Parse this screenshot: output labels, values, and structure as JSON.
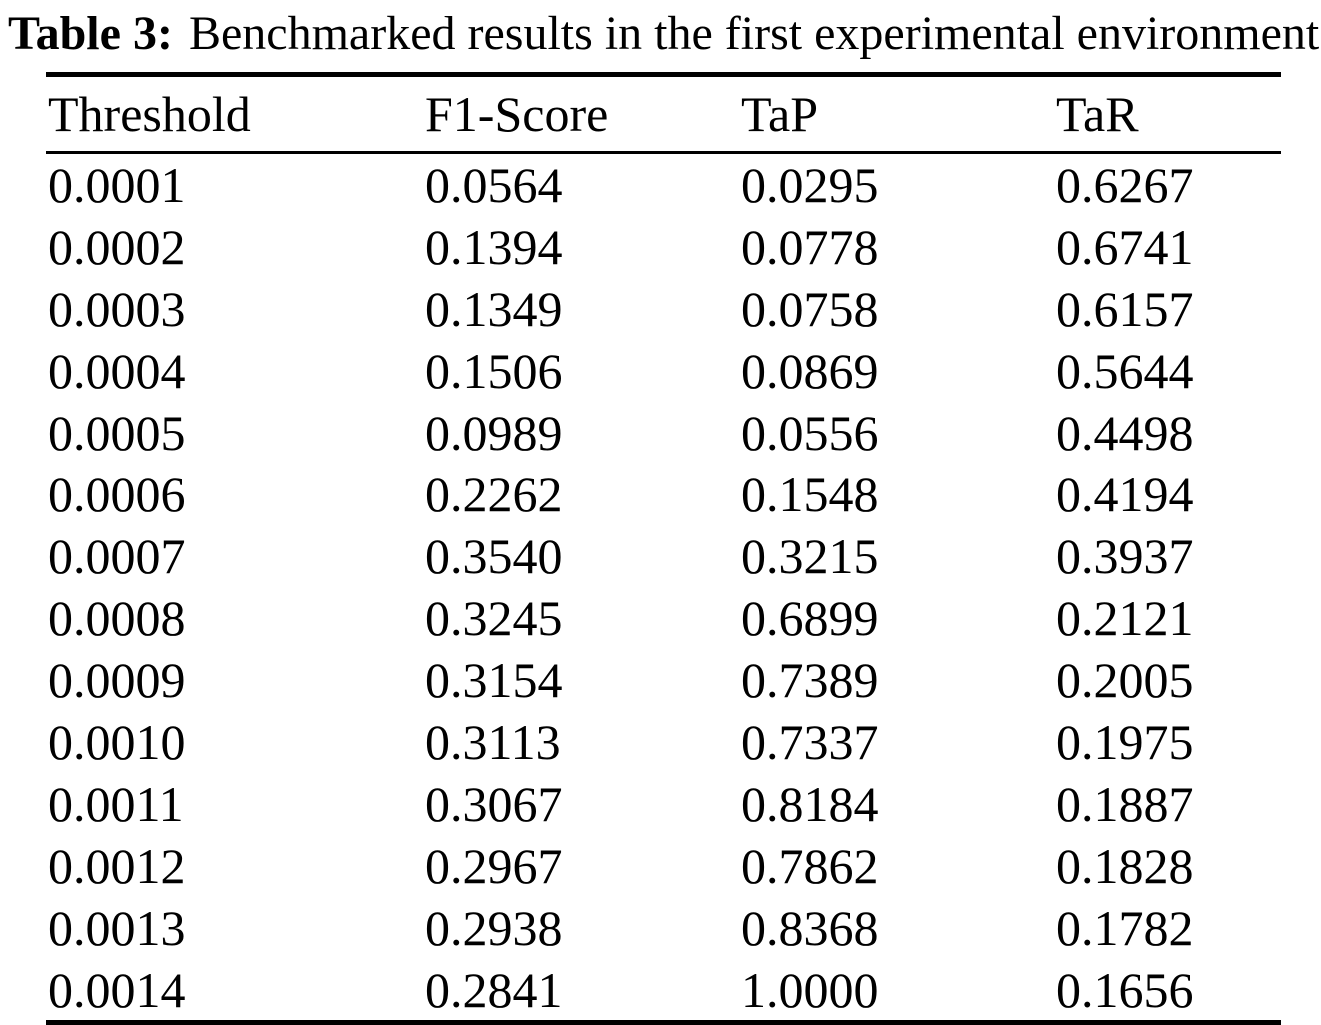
{
  "title": {
    "label": "Table 3:",
    "caption": "Benchmarked results in the first experimental environment"
  },
  "table": {
    "headers": [
      "Threshold",
      "F1-Score",
      "TaP",
      "TaR"
    ],
    "rows": [
      [
        "0.0001",
        "0.0564",
        "0.0295",
        "0.6267"
      ],
      [
        "0.0002",
        "0.1394",
        "0.0778",
        "0.6741"
      ],
      [
        "0.0003",
        "0.1349",
        "0.0758",
        "0.6157"
      ],
      [
        "0.0004",
        "0.1506",
        "0.0869",
        "0.5644"
      ],
      [
        "0.0005",
        "0.0989",
        "0.0556",
        "0.4498"
      ],
      [
        "0.0006",
        "0.2262",
        "0.1548",
        "0.4194"
      ],
      [
        "0.0007",
        "0.3540",
        "0.3215",
        "0.3937"
      ],
      [
        "0.0008",
        "0.3245",
        "0.6899",
        "0.2121"
      ],
      [
        "0.0009",
        "0.3154",
        "0.7389",
        "0.2005"
      ],
      [
        "0.0010",
        "0.3113",
        "0.7337",
        "0.1975"
      ],
      [
        "0.0011",
        "0.3067",
        "0.8184",
        "0.1887"
      ],
      [
        "0.0012",
        "0.2967",
        "0.7862",
        "0.1828"
      ],
      [
        "0.0013",
        "0.2938",
        "0.8368",
        "0.1782"
      ],
      [
        "0.0014",
        "0.2841",
        "1.0000",
        "0.1656"
      ]
    ]
  },
  "chart_data": {
    "type": "table",
    "title": "Table 3: Benchmarked results in the first experimental environment",
    "columns": [
      "Threshold",
      "F1-Score",
      "TaP",
      "TaR"
    ],
    "rows": [
      [
        0.0001,
        0.0564,
        0.0295,
        0.6267
      ],
      [
        0.0002,
        0.1394,
        0.0778,
        0.6741
      ],
      [
        0.0003,
        0.1349,
        0.0758,
        0.6157
      ],
      [
        0.0004,
        0.1506,
        0.0869,
        0.5644
      ],
      [
        0.0005,
        0.0989,
        0.0556,
        0.4498
      ],
      [
        0.0006,
        0.2262,
        0.1548,
        0.4194
      ],
      [
        0.0007,
        0.354,
        0.3215,
        0.3937
      ],
      [
        0.0008,
        0.3245,
        0.6899,
        0.2121
      ],
      [
        0.0009,
        0.3154,
        0.7389,
        0.2005
      ],
      [
        0.001,
        0.3113,
        0.7337,
        0.1975
      ],
      [
        0.0011,
        0.3067,
        0.8184,
        0.1887
      ],
      [
        0.0012,
        0.2967,
        0.7862,
        0.1828
      ],
      [
        0.0013,
        0.2938,
        0.8368,
        0.1782
      ],
      [
        0.0014,
        0.2841,
        1.0,
        0.1656
      ]
    ]
  },
  "colors": {
    "text": "#000000",
    "background": "#ffffff",
    "rule": "#000000"
  }
}
